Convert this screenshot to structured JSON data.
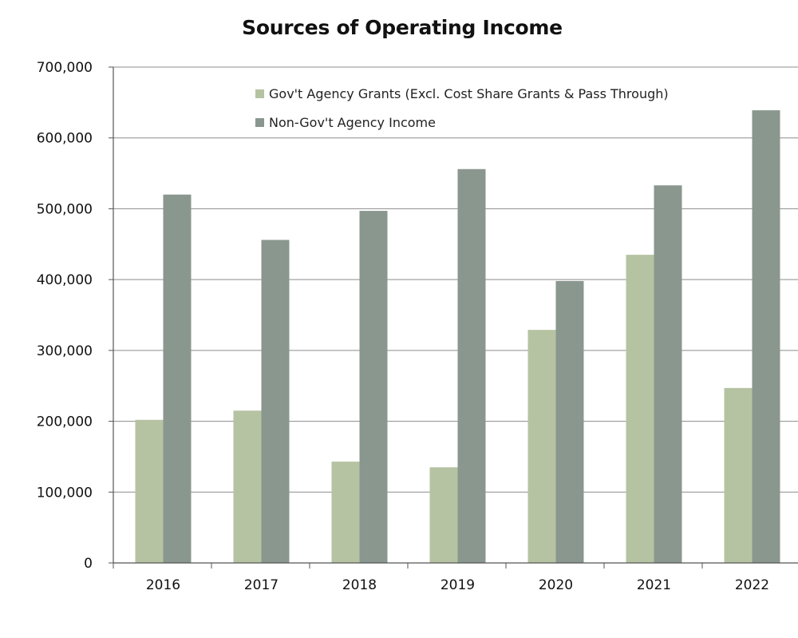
{
  "chart_data": {
    "type": "bar",
    "title": "Sources of Operating Income",
    "xlabel": "",
    "ylabel": "",
    "categories": [
      "2016",
      "2017",
      "2018",
      "2019",
      "2020",
      "2021",
      "2022"
    ],
    "series": [
      {
        "name": "Gov't Agency Grants (Excl. Cost Share Grants & Pass Through)",
        "values": [
          202000,
          215000,
          143000,
          135000,
          329000,
          435000,
          247000
        ],
        "color": "#b6c3a2"
      },
      {
        "name": "Non-Gov't Agency Income",
        "values": [
          520000,
          456000,
          497000,
          556000,
          398000,
          533000,
          639000
        ],
        "color": "#89978e"
      }
    ],
    "ylim": [
      0,
      700000
    ],
    "yticks": [
      "0",
      "100,000",
      "200,000",
      "300,000",
      "400,000",
      "500,000",
      "600,000",
      "700,000"
    ],
    "grid": true,
    "legend_position": "top-center"
  }
}
